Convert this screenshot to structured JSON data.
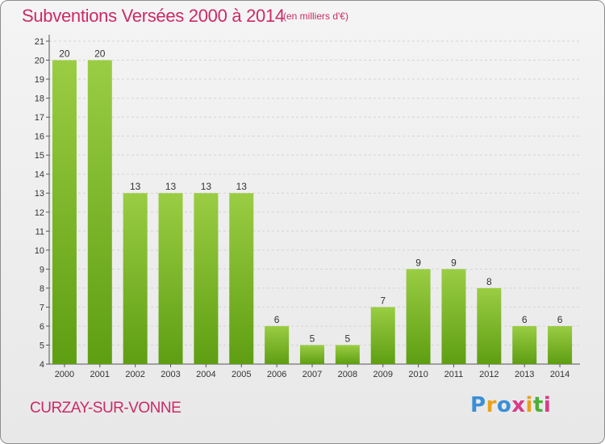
{
  "header": {
    "title": "Subventions Versées 2000 à 2014",
    "subtitle": "(en milliers d'€)"
  },
  "footer": {
    "commune": "CURZAY-SUR-VONNE",
    "logo_text": "Proxiti"
  },
  "colors": {
    "accent": "#cc2a66",
    "bar_light": "#9acd43",
    "bar_dark": "#5e9e12",
    "logo": [
      "#3a8fd6",
      "#e8a21c",
      "#3a8fd6",
      "#d93a8a",
      "#e8a21c",
      "#4cae3a",
      "#d93a8a"
    ]
  },
  "chart_data": {
    "type": "bar",
    "title": "Subventions Versées 2000 à 2014",
    "subtitle": "(en milliers d'€)",
    "categories": [
      "2000",
      "2001",
      "2002",
      "2003",
      "2004",
      "2005",
      "2006",
      "2007",
      "2008",
      "2009",
      "2010",
      "2011",
      "2012",
      "2013",
      "2014"
    ],
    "values": [
      20,
      20,
      13,
      13,
      13,
      13,
      6,
      5,
      5,
      7,
      9,
      9,
      8,
      6,
      6
    ],
    "ylim": [
      4,
      21
    ],
    "yticks": [
      "4",
      "5",
      "6",
      "7",
      "8",
      "9",
      "10",
      "11",
      "12",
      "13",
      "14",
      "15",
      "16",
      "17",
      "18",
      "19",
      "20",
      "21"
    ],
    "grid": true,
    "xlabel": "",
    "ylabel": ""
  }
}
